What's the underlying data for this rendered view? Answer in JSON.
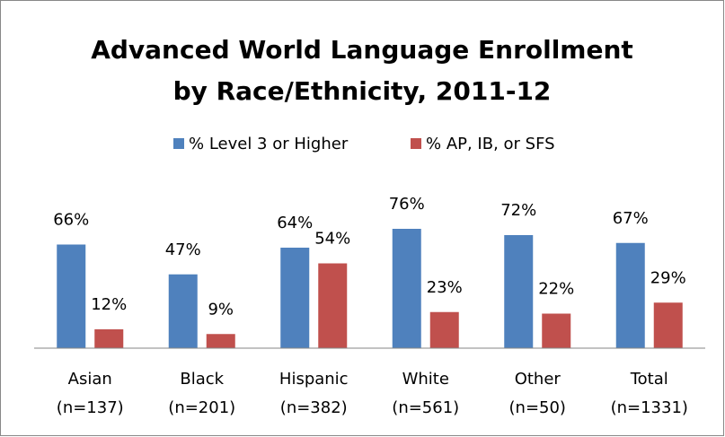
{
  "chart_data": {
    "type": "bar",
    "title": [
      "Advanced World Language Enrollment",
      "by Race/Ethnicity, 2011-12"
    ],
    "categories": [
      [
        "Asian",
        "(n=137)"
      ],
      [
        "Black",
        "(n=201)"
      ],
      [
        "Hispanic",
        "(n=382)"
      ],
      [
        "White",
        "(n=561)"
      ],
      [
        "Other",
        "(n=50)"
      ],
      [
        "Total",
        "(n=1331)"
      ]
    ],
    "series": [
      {
        "name": "% Level 3 or Higher",
        "color": "#4f81bd",
        "values": [
          66,
          47,
          64,
          76,
          72,
          67
        ],
        "value_labels": [
          "66%",
          "47%",
          "64%",
          "76%",
          "72%",
          "67%"
        ]
      },
      {
        "name": "% AP, IB, or SFS",
        "color": "#c0504d",
        "values": [
          12,
          9,
          54,
          23,
          22,
          29
        ],
        "value_labels": [
          "12%",
          "9%",
          "54%",
          "23%",
          "22%",
          "29%"
        ]
      }
    ],
    "ylim": [
      0,
      100
    ],
    "legend": "top"
  }
}
